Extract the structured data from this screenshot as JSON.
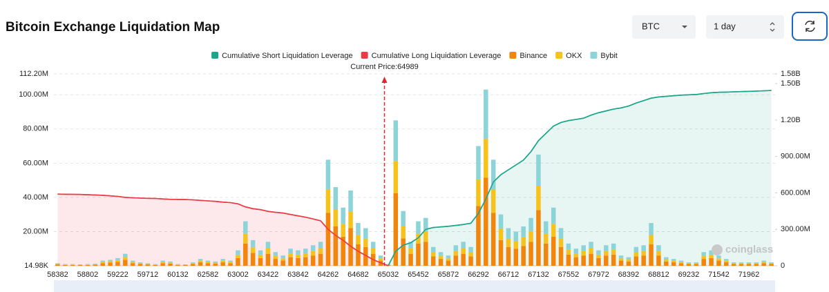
{
  "chart_data": {
    "type": "bar",
    "title": "Bitcoin Exchange Liquidation Map",
    "annotation": "Current Price:64989",
    "watermark": "coinglass",
    "categories": [
      "58382",
      null,
      null,
      null,
      "58802",
      null,
      null,
      null,
      "59222",
      null,
      null,
      null,
      "59712",
      null,
      null,
      null,
      "60132",
      null,
      null,
      null,
      "62582",
      null,
      null,
      null,
      "63002",
      null,
      null,
      null,
      "63422",
      null,
      null,
      null,
      "63842",
      null,
      null,
      null,
      "64262",
      null,
      null,
      null,
      "64682",
      null,
      null,
      null,
      "65032",
      null,
      null,
      null,
      "65452",
      null,
      null,
      null,
      "65872",
      null,
      null,
      null,
      "66292",
      null,
      null,
      null,
      "66712",
      null,
      null,
      null,
      "67132",
      null,
      null,
      null,
      "67552",
      null,
      null,
      null,
      "67972",
      null,
      null,
      null,
      "68392",
      null,
      null,
      null,
      "68812",
      null,
      null,
      null,
      "69232",
      null,
      null,
      null,
      "71542",
      null,
      null,
      null,
      "71962",
      null,
      null,
      null
    ],
    "ylim": [
      14980,
      112200000
    ],
    "yticks": [
      {
        "value": 14980,
        "label": "14.98K"
      },
      {
        "value": 20000000,
        "label": "20.00M"
      },
      {
        "value": 40000000,
        "label": "40.00M"
      },
      {
        "value": 60000000,
        "label": "60.00M"
      },
      {
        "value": 80000000,
        "label": "80.00M"
      },
      {
        "value": 100000000,
        "label": "100.00M"
      },
      {
        "value": 112200000,
        "label": "112.20M"
      }
    ],
    "y2lim": [
      0,
      1580000000
    ],
    "y2ticks": [
      0,
      {
        "value": 300000000,
        "label": "300.00M"
      },
      {
        "value": 600000000,
        "label": "600.00M"
      },
      {
        "value": 900000000,
        "label": "900.00M"
      },
      {
        "value": 1200000000,
        "label": "1.20B"
      },
      {
        "value": 1500000000,
        "label": "1.50B"
      },
      {
        "value": 1580000000,
        "label": "1.58B"
      }
    ],
    "grid": true,
    "series": [
      {
        "name": "Cumulative Short Liquidation Leverage",
        "type": "line",
        "axis": "y2",
        "color": "#1ba58b",
        "fill": "rgba(27,165,139,0.10)",
        "values": [
          null,
          null,
          null,
          null,
          null,
          null,
          null,
          null,
          null,
          null,
          null,
          null,
          null,
          null,
          null,
          null,
          null,
          null,
          null,
          null,
          null,
          null,
          null,
          null,
          null,
          null,
          null,
          null,
          null,
          null,
          null,
          null,
          null,
          null,
          null,
          null,
          null,
          null,
          null,
          null,
          null,
          null,
          null,
          null,
          0,
          120000000,
          170000000,
          190000000,
          230000000,
          300000000,
          315000000,
          320000000,
          325000000,
          332000000,
          340000000,
          350000000,
          430000000,
          550000000,
          690000000,
          750000000,
          790000000,
          830000000,
          870000000,
          940000000,
          1030000000,
          1090000000,
          1150000000,
          1180000000,
          1195000000,
          1205000000,
          1215000000,
          1240000000,
          1260000000,
          1275000000,
          1290000000,
          1300000000,
          1315000000,
          1340000000,
          1360000000,
          1380000000,
          1390000000,
          1395000000,
          1400000000,
          1405000000,
          1408000000,
          1410000000,
          1418000000,
          1425000000,
          1428000000,
          1430000000,
          1432000000,
          1434000000,
          1436000000,
          1438000000,
          1441000000,
          1443000000
        ]
      },
      {
        "name": "Cumulative Long Liquidation Leverage",
        "type": "line",
        "axis": "y2",
        "color": "#ec3a45",
        "fill": "rgba(236,58,69,0.11)",
        "values": [
          590000000,
          589000000,
          588000000,
          587000000,
          585000000,
          583000000,
          580000000,
          576000000,
          571000000,
          563000000,
          560000000,
          557000000,
          555000000,
          554000000,
          550000000,
          547000000,
          546000000,
          545000000,
          543000000,
          538000000,
          534000000,
          530000000,
          524000000,
          520000000,
          510000000,
          485000000,
          470000000,
          462000000,
          448000000,
          440000000,
          434000000,
          422000000,
          411000000,
          400000000,
          386000000,
          370000000,
          300000000,
          250000000,
          210000000,
          160000000,
          120000000,
          85000000,
          50000000,
          25000000,
          0,
          null,
          null,
          null,
          null,
          null,
          null,
          null,
          null,
          null,
          null,
          null,
          null,
          null,
          null,
          null,
          null,
          null,
          null,
          null,
          null,
          null,
          null,
          null,
          null,
          null,
          null,
          null,
          null,
          null,
          null,
          null,
          null,
          null,
          null,
          null,
          null,
          null,
          null,
          null,
          null,
          null,
          null,
          null,
          null,
          null,
          null,
          null,
          null,
          null,
          null,
          null
        ]
      },
      {
        "name": "Binance",
        "type": "bar",
        "color": "#f2850c",
        "values": [
          800000,
          500000,
          500000,
          400000,
          500000,
          600000,
          1500000,
          1800000,
          2300000,
          3500000,
          1500000,
          1000000,
          800000,
          500000,
          1500000,
          1300000,
          500000,
          400000,
          1000000,
          2000000,
          1500000,
          1300000,
          2000000,
          1500000,
          4500000,
          13000000,
          7500000,
          4500000,
          7000000,
          4000000,
          3000000,
          5000000,
          4500000,
          5000000,
          6000000,
          7000000,
          31000000,
          23000000,
          17000000,
          22000000,
          12500000,
          11000000,
          7000000,
          3000000,
          500000,
          42500000,
          16000000,
          7000000,
          13000000,
          14000000,
          5500000,
          4000000,
          3000000,
          6000000,
          7000000,
          5500000,
          35000000,
          51500000,
          31000000,
          15000000,
          11000000,
          10000000,
          11500000,
          14000000,
          32500000,
          13000000,
          17000000,
          11000000,
          6500000,
          5000000,
          6000000,
          7000000,
          4500000,
          6000000,
          6500000,
          3000000,
          2500000,
          5500000,
          6000000,
          12500000,
          6000000,
          2500000,
          2000000,
          1500000,
          1000000,
          1000000,
          4000000,
          4500000,
          3000000,
          2000000,
          1000000,
          1000000,
          1000000,
          1000000,
          1500000,
          1000000
        ]
      },
      {
        "name": "OKX",
        "type": "bar",
        "color": "#f6c21c",
        "values": [
          300000,
          200000,
          200000,
          200000,
          200000,
          300000,
          700000,
          800000,
          1000000,
          1500000,
          700000,
          400000,
          300000,
          200000,
          700000,
          500000,
          200000,
          200000,
          400000,
          900000,
          700000,
          500000,
          900000,
          700000,
          2000000,
          5700000,
          3300000,
          2000000,
          3100000,
          1800000,
          1300000,
          2200000,
          2000000,
          2200000,
          2600000,
          3100000,
          13600000,
          10100000,
          7500000,
          9700000,
          5500000,
          4800000,
          3100000,
          1300000,
          200000,
          18700000,
          7000000,
          3100000,
          5700000,
          6200000,
          2400000,
          1800000,
          1300000,
          2600000,
          3100000,
          2400000,
          15400000,
          22700000,
          13600000,
          6600000,
          4800000,
          4400000,
          5100000,
          6200000,
          14300000,
          5700000,
          7500000,
          4800000,
          2900000,
          2200000,
          2600000,
          3100000,
          2000000,
          2600000,
          2900000,
          1300000,
          1100000,
          2400000,
          2600000,
          5500000,
          2600000,
          1100000,
          900000,
          700000,
          400000,
          400000,
          1800000,
          2000000,
          1300000,
          900000,
          400000,
          400000,
          400000,
          400000,
          700000,
          400000
        ]
      },
      {
        "name": "Bybit",
        "type": "bar",
        "color": "#8dd4d9",
        "values": [
          400000,
          300000,
          300000,
          200000,
          300000,
          300000,
          800000,
          900000,
          1200000,
          2000000,
          800000,
          600000,
          400000,
          300000,
          800000,
          700000,
          300000,
          200000,
          600000,
          1100000,
          800000,
          700000,
          1100000,
          800000,
          2500000,
          7300000,
          4200000,
          2500000,
          3900000,
          2200000,
          1700000,
          2800000,
          2500000,
          2800000,
          3400000,
          3900000,
          17400000,
          12900000,
          9500000,
          12300000,
          7000000,
          6200000,
          3900000,
          1700000,
          300000,
          23800000,
          9000000,
          3900000,
          7300000,
          7800000,
          3100000,
          2200000,
          1700000,
          3400000,
          3900000,
          3100000,
          19600000,
          28800000,
          17400000,
          8400000,
          6200000,
          5600000,
          6400000,
          7800000,
          18200000,
          7300000,
          9500000,
          6200000,
          3600000,
          2800000,
          3400000,
          3900000,
          2500000,
          3400000,
          3600000,
          1700000,
          1400000,
          3100000,
          3400000,
          7000000,
          3400000,
          1400000,
          1100000,
          800000,
          600000,
          600000,
          2200000,
          2500000,
          1700000,
          1100000,
          600000,
          600000,
          600000,
          600000,
          800000,
          600000
        ]
      }
    ]
  },
  "controls": {
    "symbol": "BTC",
    "interval": "1 day"
  }
}
